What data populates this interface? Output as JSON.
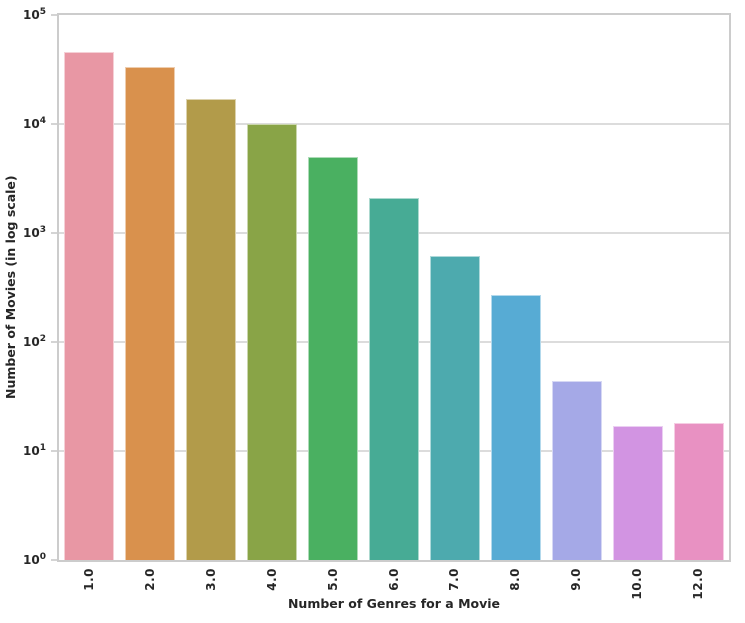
{
  "figure": {
    "background": "#ffffff"
  },
  "chart_data": {
    "type": "bar",
    "title": "",
    "xlabel": "Number of Genres for a Movie",
    "ylabel": "Number of Movies (in log scale)",
    "categories": [
      "1.0",
      "2.0",
      "3.0",
      "4.0",
      "5.0",
      "6.0",
      "7.0",
      "8.0",
      "9.0",
      "10.0",
      "12.0"
    ],
    "values": [
      46000,
      33000,
      17000,
      10000,
      5000,
      2100,
      610,
      270,
      44,
      17,
      18
    ],
    "yscale": "log",
    "ylim": [
      1,
      100000
    ],
    "ytick_base": "10",
    "ytick_exponents": [
      "5",
      "4",
      "3",
      "2",
      "1",
      "0"
    ],
    "grid": "horizontal-major",
    "legend": null,
    "bar_width_fraction": 0.82,
    "bar_colors": [
      "#e897a4",
      "#d9914d",
      "#b29b4a",
      "#89a447",
      "#4ab061",
      "#47ab95",
      "#4daaae",
      "#57abd4",
      "#a5a9e7",
      "#d294e2",
      "#e891c2"
    ],
    "grid_color": "#dcdcdc",
    "spine_color": "#cccccc",
    "tick_color": "#d4d4d4",
    "text_color": "#262626"
  }
}
